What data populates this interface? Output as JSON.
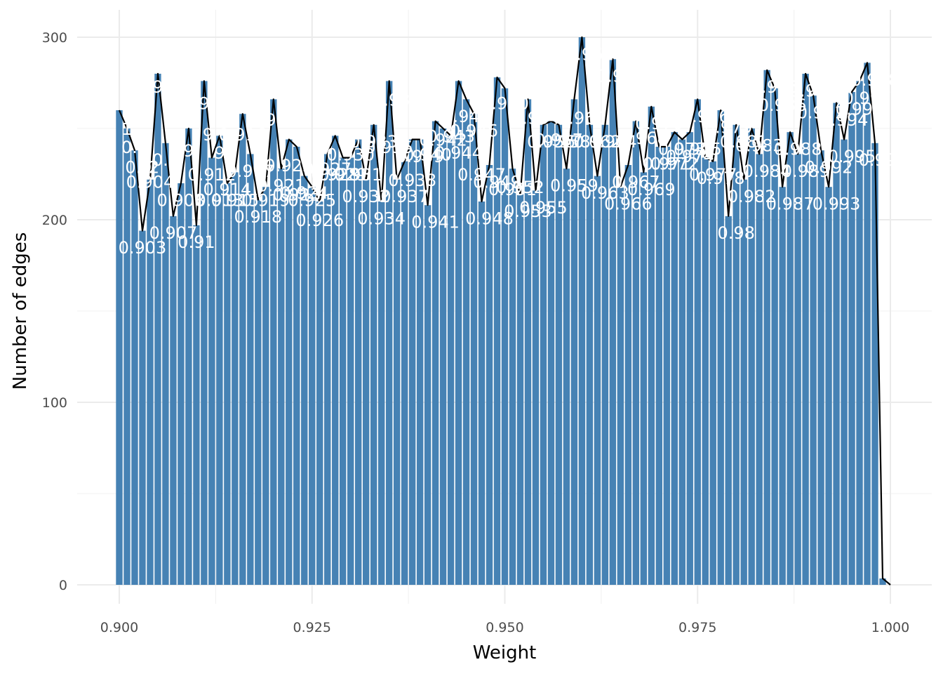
{
  "chart_data": {
    "type": "bar",
    "overlay": "line",
    "xlabel": "Weight",
    "ylabel": "Number of edges",
    "xlim": [
      0.9,
      1.0
    ],
    "ylim": [
      0,
      300
    ],
    "x_ticks": [
      {
        "value": 0.9,
        "label": "0.900"
      },
      {
        "value": 0.925,
        "label": "0.925"
      },
      {
        "value": 0.95,
        "label": "0.950"
      },
      {
        "value": 0.975,
        "label": "0.975"
      },
      {
        "value": 1.0,
        "label": "1.000"
      }
    ],
    "y_ticks": [
      {
        "value": 0,
        "label": "0"
      },
      {
        "value": 100,
        "label": "100"
      },
      {
        "value": 200,
        "label": "200"
      },
      {
        "value": 300,
        "label": "300"
      }
    ],
    "grid": true,
    "bar_color": "#4682b4",
    "line_color": "#000000",
    "label_color": "#ffffff",
    "x": [
      0.9,
      0.901,
      0.902,
      0.903,
      0.904,
      0.905,
      0.906,
      0.907,
      0.908,
      0.909,
      0.91,
      0.911,
      0.912,
      0.913,
      0.914,
      0.915,
      0.916,
      0.917,
      0.918,
      0.919,
      0.92,
      0.921,
      0.922,
      0.923,
      0.924,
      0.925,
      0.926,
      0.927,
      0.928,
      0.929,
      0.93,
      0.931,
      0.932,
      0.933,
      0.934,
      0.935,
      0.936,
      0.937,
      0.938,
      0.939,
      0.94,
      0.941,
      0.942,
      0.943,
      0.944,
      0.945,
      0.946,
      0.947,
      0.948,
      0.949,
      0.95,
      0.951,
      0.952,
      0.953,
      0.954,
      0.955,
      0.956,
      0.957,
      0.958,
      0.959,
      0.96,
      0.961,
      0.962,
      0.963,
      0.964,
      0.965,
      0.966,
      0.967,
      0.968,
      0.969,
      0.97,
      0.971,
      0.972,
      0.973,
      0.974,
      0.975,
      0.976,
      0.977,
      0.978,
      0.979,
      0.98,
      0.981,
      0.982,
      0.983,
      0.984,
      0.985,
      0.986,
      0.987,
      0.988,
      0.989,
      0.99,
      0.991,
      0.992,
      0.993,
      0.994,
      0.995,
      0.996,
      0.997,
      0.998,
      0.999,
      1.0
    ],
    "values": [
      260,
      250,
      238,
      194,
      222,
      280,
      242,
      202,
      220,
      250,
      197,
      276,
      234,
      246,
      220,
      226,
      258,
      236,
      211,
      218,
      266,
      228,
      244,
      240,
      224,
      218,
      210,
      236,
      246,
      234,
      234,
      244,
      222,
      252,
      210,
      276,
      222,
      232,
      244,
      244,
      208,
      254,
      250,
      246,
      276,
      266,
      258,
      210,
      230,
      278,
      272,
      228,
      214,
      266,
      216,
      252,
      254,
      252,
      228,
      266,
      300,
      252,
      224,
      252,
      288,
      218,
      230,
      254,
      226,
      262,
      240,
      240,
      248,
      244,
      248,
      266,
      234,
      232,
      260,
      202,
      252,
      222,
      250,
      236,
      282,
      272,
      218,
      248,
      236,
      280,
      268,
      238,
      218,
      264,
      244,
      270,
      276,
      286,
      242,
      3.5,
      0
    ],
    "bar_labels": [
      {
        "x": 0.901,
        "y": 250,
        "text": "1"
      },
      {
        "x": 0.902,
        "y": 240,
        "text": "0.9"
      },
      {
        "x": 0.9025,
        "y": 229,
        "text": "0.9"
      },
      {
        "x": 0.904,
        "y": 221,
        "text": "0.904"
      },
      {
        "x": 0.9045,
        "y": 229,
        "text": "2"
      },
      {
        "x": 0.903,
        "y": 185,
        "text": "0.903"
      },
      {
        "x": 0.905,
        "y": 273,
        "text": "9"
      },
      {
        "x": 0.906,
        "y": 233,
        "text": "0.9"
      },
      {
        "x": 0.907,
        "y": 193,
        "text": "0.907"
      },
      {
        "x": 0.908,
        "y": 211,
        "text": "0.908"
      },
      {
        "x": 0.909,
        "y": 238,
        "text": "9"
      },
      {
        "x": 0.91,
        "y": 188,
        "text": "0.91"
      },
      {
        "x": 0.911,
        "y": 264,
        "text": "9"
      },
      {
        "x": 0.9115,
        "y": 247,
        "text": "9"
      },
      {
        "x": 0.912,
        "y": 225,
        "text": "0.912"
      },
      {
        "x": 0.913,
        "y": 237,
        "text": "9"
      },
      {
        "x": 0.913,
        "y": 211,
        "text": "0.913"
      },
      {
        "x": 0.914,
        "y": 217,
        "text": "0.914"
      },
      {
        "x": 0.915,
        "y": 211,
        "text": "0.915"
      },
      {
        "x": 0.916,
        "y": 247,
        "text": "0.916"
      },
      {
        "x": 0.917,
        "y": 227,
        "text": "0.917"
      },
      {
        "x": 0.918,
        "y": 202,
        "text": "0.918"
      },
      {
        "x": 0.919,
        "y": 211,
        "text": "0.919"
      },
      {
        "x": 0.92,
        "y": 255,
        "text": "0.920"
      },
      {
        "x": 0.921,
        "y": 219,
        "text": "0.921"
      },
      {
        "x": 0.922,
        "y": 230,
        "text": "0.922"
      },
      {
        "x": 0.923,
        "y": 214,
        "text": "0.923"
      },
      {
        "x": 0.924,
        "y": 215,
        "text": "0.924"
      },
      {
        "x": 0.925,
        "y": 211,
        "text": "0.925"
      },
      {
        "x": 0.926,
        "y": 200,
        "text": "0.926"
      },
      {
        "x": 0.927,
        "y": 228,
        "text": "0.927"
      },
      {
        "x": 0.928,
        "y": 225,
        "text": "0.928"
      },
      {
        "x": 0.929,
        "y": 225,
        "text": "0.929"
      },
      {
        "x": 0.93,
        "y": 236,
        "text": "0.930"
      },
      {
        "x": 0.931,
        "y": 225,
        "text": "0.931"
      },
      {
        "x": 0.932,
        "y": 213,
        "text": "0.932"
      },
      {
        "x": 0.933,
        "y": 243,
        "text": "0.933"
      },
      {
        "x": 0.934,
        "y": 201,
        "text": "0.934"
      },
      {
        "x": 0.935,
        "y": 240,
        "text": "0.935"
      },
      {
        "x": 0.936,
        "y": 266,
        "text": "0.936"
      },
      {
        "x": 0.937,
        "y": 213,
        "text": "0.937"
      },
      {
        "x": 0.938,
        "y": 222,
        "text": "0.938"
      },
      {
        "x": 0.939,
        "y": 235,
        "text": "0.939"
      },
      {
        "x": 0.94,
        "y": 236,
        "text": "0.940"
      },
      {
        "x": 0.941,
        "y": 199,
        "text": "0.941"
      },
      {
        "x": 0.942,
        "y": 244,
        "text": "0.942"
      },
      {
        "x": 0.943,
        "y": 246,
        "text": "0.943"
      },
      {
        "x": 0.944,
        "y": 237,
        "text": "0.944"
      },
      {
        "x": 0.945,
        "y": 257,
        "text": "0.945"
      },
      {
        "x": 0.946,
        "y": 249,
        "text": "0.946"
      },
      {
        "x": 0.947,
        "y": 225,
        "text": "0.947"
      },
      {
        "x": 0.948,
        "y": 201,
        "text": "0.948"
      },
      {
        "x": 0.949,
        "y": 221,
        "text": "0.949"
      },
      {
        "x": 0.95,
        "y": 264,
        "text": "0.950"
      },
      {
        "x": 0.951,
        "y": 217,
        "text": "0.951"
      },
      {
        "x": 0.952,
        "y": 218,
        "text": "0.952"
      },
      {
        "x": 0.953,
        "y": 205,
        "text": "0.953"
      },
      {
        "x": 0.954,
        "y": 256,
        "text": "0.954"
      },
      {
        "x": 0.955,
        "y": 207,
        "text": "0.955"
      },
      {
        "x": 0.956,
        "y": 243,
        "text": "0.956"
      },
      {
        "x": 0.957,
        "y": 244,
        "text": "0.957"
      },
      {
        "x": 0.958,
        "y": 243,
        "text": "0.958"
      },
      {
        "x": 0.959,
        "y": 219,
        "text": "0.959"
      },
      {
        "x": 0.96,
        "y": 256,
        "text": "0.960"
      },
      {
        "x": 0.961,
        "y": 291,
        "text": "0.961"
      },
      {
        "x": 0.962,
        "y": 243,
        "text": "0.962"
      },
      {
        "x": 0.963,
        "y": 215,
        "text": "0.963"
      },
      {
        "x": 0.964,
        "y": 243,
        "text": "0.964"
      },
      {
        "x": 0.965,
        "y": 279,
        "text": "0.965"
      },
      {
        "x": 0.966,
        "y": 209,
        "text": "0.966"
      },
      {
        "x": 0.967,
        "y": 221,
        "text": "0.967"
      },
      {
        "x": 0.968,
        "y": 245,
        "text": "0.968"
      },
      {
        "x": 0.969,
        "y": 217,
        "text": "0.969"
      },
      {
        "x": 0.97,
        "y": 253,
        "text": "0.970"
      },
      {
        "x": 0.971,
        "y": 231,
        "text": "0.971"
      },
      {
        "x": 0.972,
        "y": 231,
        "text": "0.972"
      },
      {
        "x": 0.973,
        "y": 239,
        "text": "0.973"
      },
      {
        "x": 0.974,
        "y": 235,
        "text": "0.974"
      },
      {
        "x": 0.975,
        "y": 239,
        "text": "0.975"
      },
      {
        "x": 0.976,
        "y": 257,
        "text": "0.976"
      },
      {
        "x": 0.977,
        "y": 225,
        "text": "0.977"
      },
      {
        "x": 0.978,
        "y": 223,
        "text": "0.978"
      },
      {
        "x": 0.979,
        "y": 251,
        "text": "0.979"
      },
      {
        "x": 0.98,
        "y": 193,
        "text": "0.98"
      },
      {
        "x": 0.981,
        "y": 243,
        "text": "0.981"
      },
      {
        "x": 0.982,
        "y": 213,
        "text": "0.982"
      },
      {
        "x": 0.983,
        "y": 241,
        "text": "0.983"
      },
      {
        "x": 0.984,
        "y": 227,
        "text": "0.984"
      },
      {
        "x": 0.985,
        "y": 273,
        "text": "0.985"
      },
      {
        "x": 0.986,
        "y": 263,
        "text": "0.986"
      },
      {
        "x": 0.987,
        "y": 209,
        "text": "0.987"
      },
      {
        "x": 0.988,
        "y": 239,
        "text": "0.988"
      },
      {
        "x": 0.989,
        "y": 227,
        "text": "0.989"
      },
      {
        "x": 0.99,
        "y": 271,
        "text": "0.990"
      },
      {
        "x": 0.991,
        "y": 259,
        "text": "0.991"
      },
      {
        "x": 0.992,
        "y": 229,
        "text": "0.992"
      },
      {
        "x": 0.993,
        "y": 209,
        "text": "0.993"
      },
      {
        "x": 0.994,
        "y": 255,
        "text": "0.994"
      },
      {
        "x": 0.995,
        "y": 235,
        "text": "0.995"
      },
      {
        "x": 0.996,
        "y": 261,
        "text": "0.996"
      },
      {
        "x": 0.997,
        "y": 267,
        "text": "0.997"
      },
      {
        "x": 0.998,
        "y": 277,
        "text": "0.998"
      },
      {
        "x": 0.999,
        "y": 233,
        "text": "0.999"
      }
    ]
  }
}
